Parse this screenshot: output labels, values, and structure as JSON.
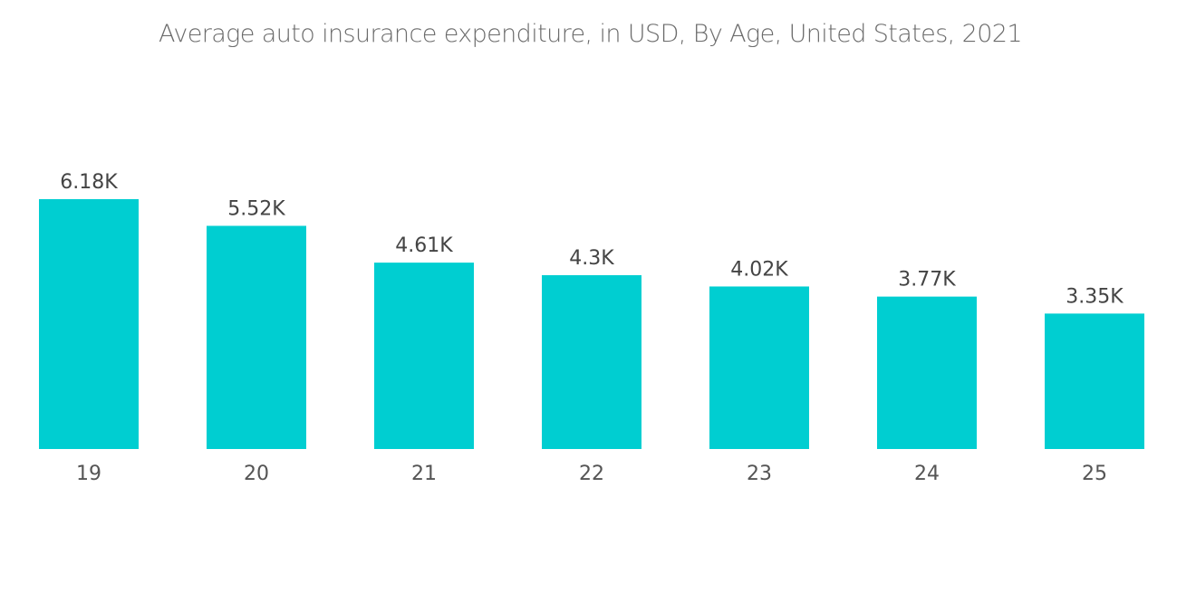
{
  "chart_data": {
    "type": "bar",
    "title": "Average auto insurance expenditure, in USD, By Age, United States, 2021",
    "xlabel": "",
    "ylabel": "",
    "categories": [
      "19",
      "20",
      "21",
      "22",
      "23",
      "24",
      "25"
    ],
    "values": [
      6180,
      5520,
      4610,
      4300,
      4020,
      3770,
      3350
    ],
    "data_labels": [
      "6.18K",
      "5.52K",
      "4.61K",
      "4.3K",
      "4.02K",
      "3.77K",
      "3.35K"
    ],
    "ylim": [
      0,
      6180
    ],
    "grid": false,
    "legend": "none",
    "bar_color": "#00ced1"
  }
}
